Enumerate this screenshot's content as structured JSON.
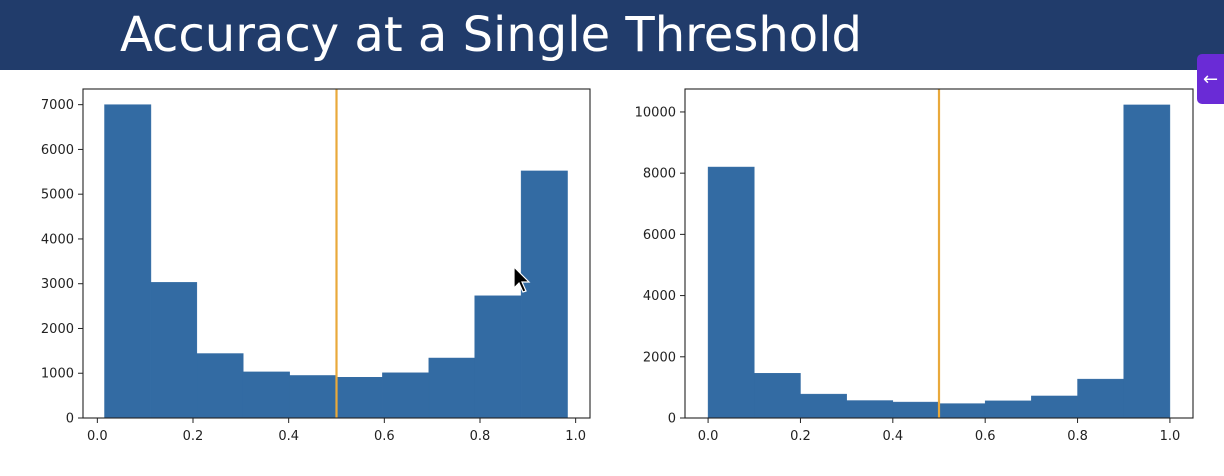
{
  "header": {
    "title": "Accuracy at a Single Threshold"
  },
  "side_tab": {
    "icon": "arrow-left-icon"
  },
  "colors": {
    "header_bg": "#213c6b",
    "bar": "#336ba3",
    "threshold_line": "#e9a93b",
    "side_tab": "#6a2bd6"
  },
  "chart_data": [
    {
      "type": "bar",
      "title": "",
      "xlabel": "",
      "ylabel": "",
      "bin_edges": [
        0.015,
        0.112,
        0.208,
        0.305,
        0.402,
        0.5,
        0.596,
        0.693,
        0.789,
        0.886,
        0.983
      ],
      "values": [
        7000,
        3030,
        1440,
        1030,
        950,
        910,
        1010,
        1340,
        2730,
        5520
      ],
      "xlim": [
        -0.03,
        1.03
      ],
      "ylim": [
        0,
        7350
      ],
      "xticks": [
        "0.0",
        "0.2",
        "0.4",
        "0.6",
        "0.8",
        "1.0"
      ],
      "yticks": [
        "0",
        "1000",
        "2000",
        "3000",
        "4000",
        "5000",
        "6000",
        "7000"
      ],
      "threshold": 0.5
    },
    {
      "type": "bar",
      "title": "",
      "xlabel": "",
      "ylabel": "",
      "bin_edges": [
        0.0,
        0.1,
        0.2,
        0.3,
        0.4,
        0.5,
        0.6,
        0.7,
        0.8,
        0.9,
        1.0
      ],
      "values": [
        8200,
        1460,
        780,
        570,
        520,
        470,
        560,
        720,
        1270,
        10230
      ],
      "xlim": [
        -0.05,
        1.05
      ],
      "ylim": [
        0,
        10750
      ],
      "xticks": [
        "0.0",
        "0.2",
        "0.4",
        "0.6",
        "0.8",
        "1.0"
      ],
      "yticks": [
        "0",
        "2000",
        "4000",
        "6000",
        "8000",
        "10000"
      ],
      "threshold": 0.5
    }
  ]
}
